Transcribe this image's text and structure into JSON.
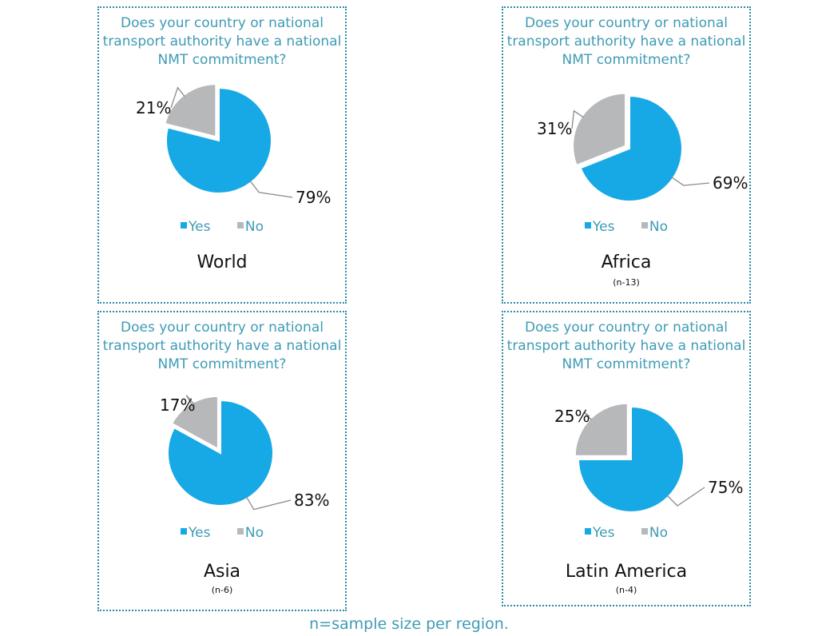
{
  "colors": {
    "yes": "#17a9e6",
    "no": "#b7b8ba",
    "border": "#2a8aa6",
    "text_accent": "#3e9bb5"
  },
  "chart_data": [
    {
      "type": "pie",
      "title": "Does your country or national transport authority have a national NMT commitment?",
      "region": "World",
      "sample": "",
      "slices": [
        {
          "label": "Yes",
          "value": 79
        },
        {
          "label": "No",
          "value": 21
        }
      ],
      "value_labels": [
        "79%",
        "21%"
      ],
      "legend": [
        "Yes",
        "No"
      ]
    },
    {
      "type": "pie",
      "title": "Does your country or national transport authority have a national NMT commitment?",
      "region": "Africa",
      "sample": "(n-13)",
      "slices": [
        {
          "label": "Yes",
          "value": 69
        },
        {
          "label": "No",
          "value": 31
        }
      ],
      "value_labels": [
        "69%",
        "31%"
      ],
      "legend": [
        "Yes",
        "No"
      ]
    },
    {
      "type": "pie",
      "title": "Does your country or national transport authority have a national NMT commitment?",
      "region": "Asia",
      "sample": "(n-6)",
      "slices": [
        {
          "label": "Yes",
          "value": 83
        },
        {
          "label": "No",
          "value": 17
        }
      ],
      "value_labels": [
        "83%",
        "17%"
      ],
      "legend": [
        "Yes",
        "No"
      ]
    },
    {
      "type": "pie",
      "title": "Does your country or national transport authority have a national NMT commitment?",
      "region": "Latin America",
      "sample": "(n-4)",
      "slices": [
        {
          "label": "Yes",
          "value": 75
        },
        {
          "label": "No",
          "value": 25
        }
      ],
      "value_labels": [
        "75%",
        "25%"
      ],
      "legend": [
        "Yes",
        "No"
      ]
    }
  ],
  "footnote": "n=sample size per region."
}
